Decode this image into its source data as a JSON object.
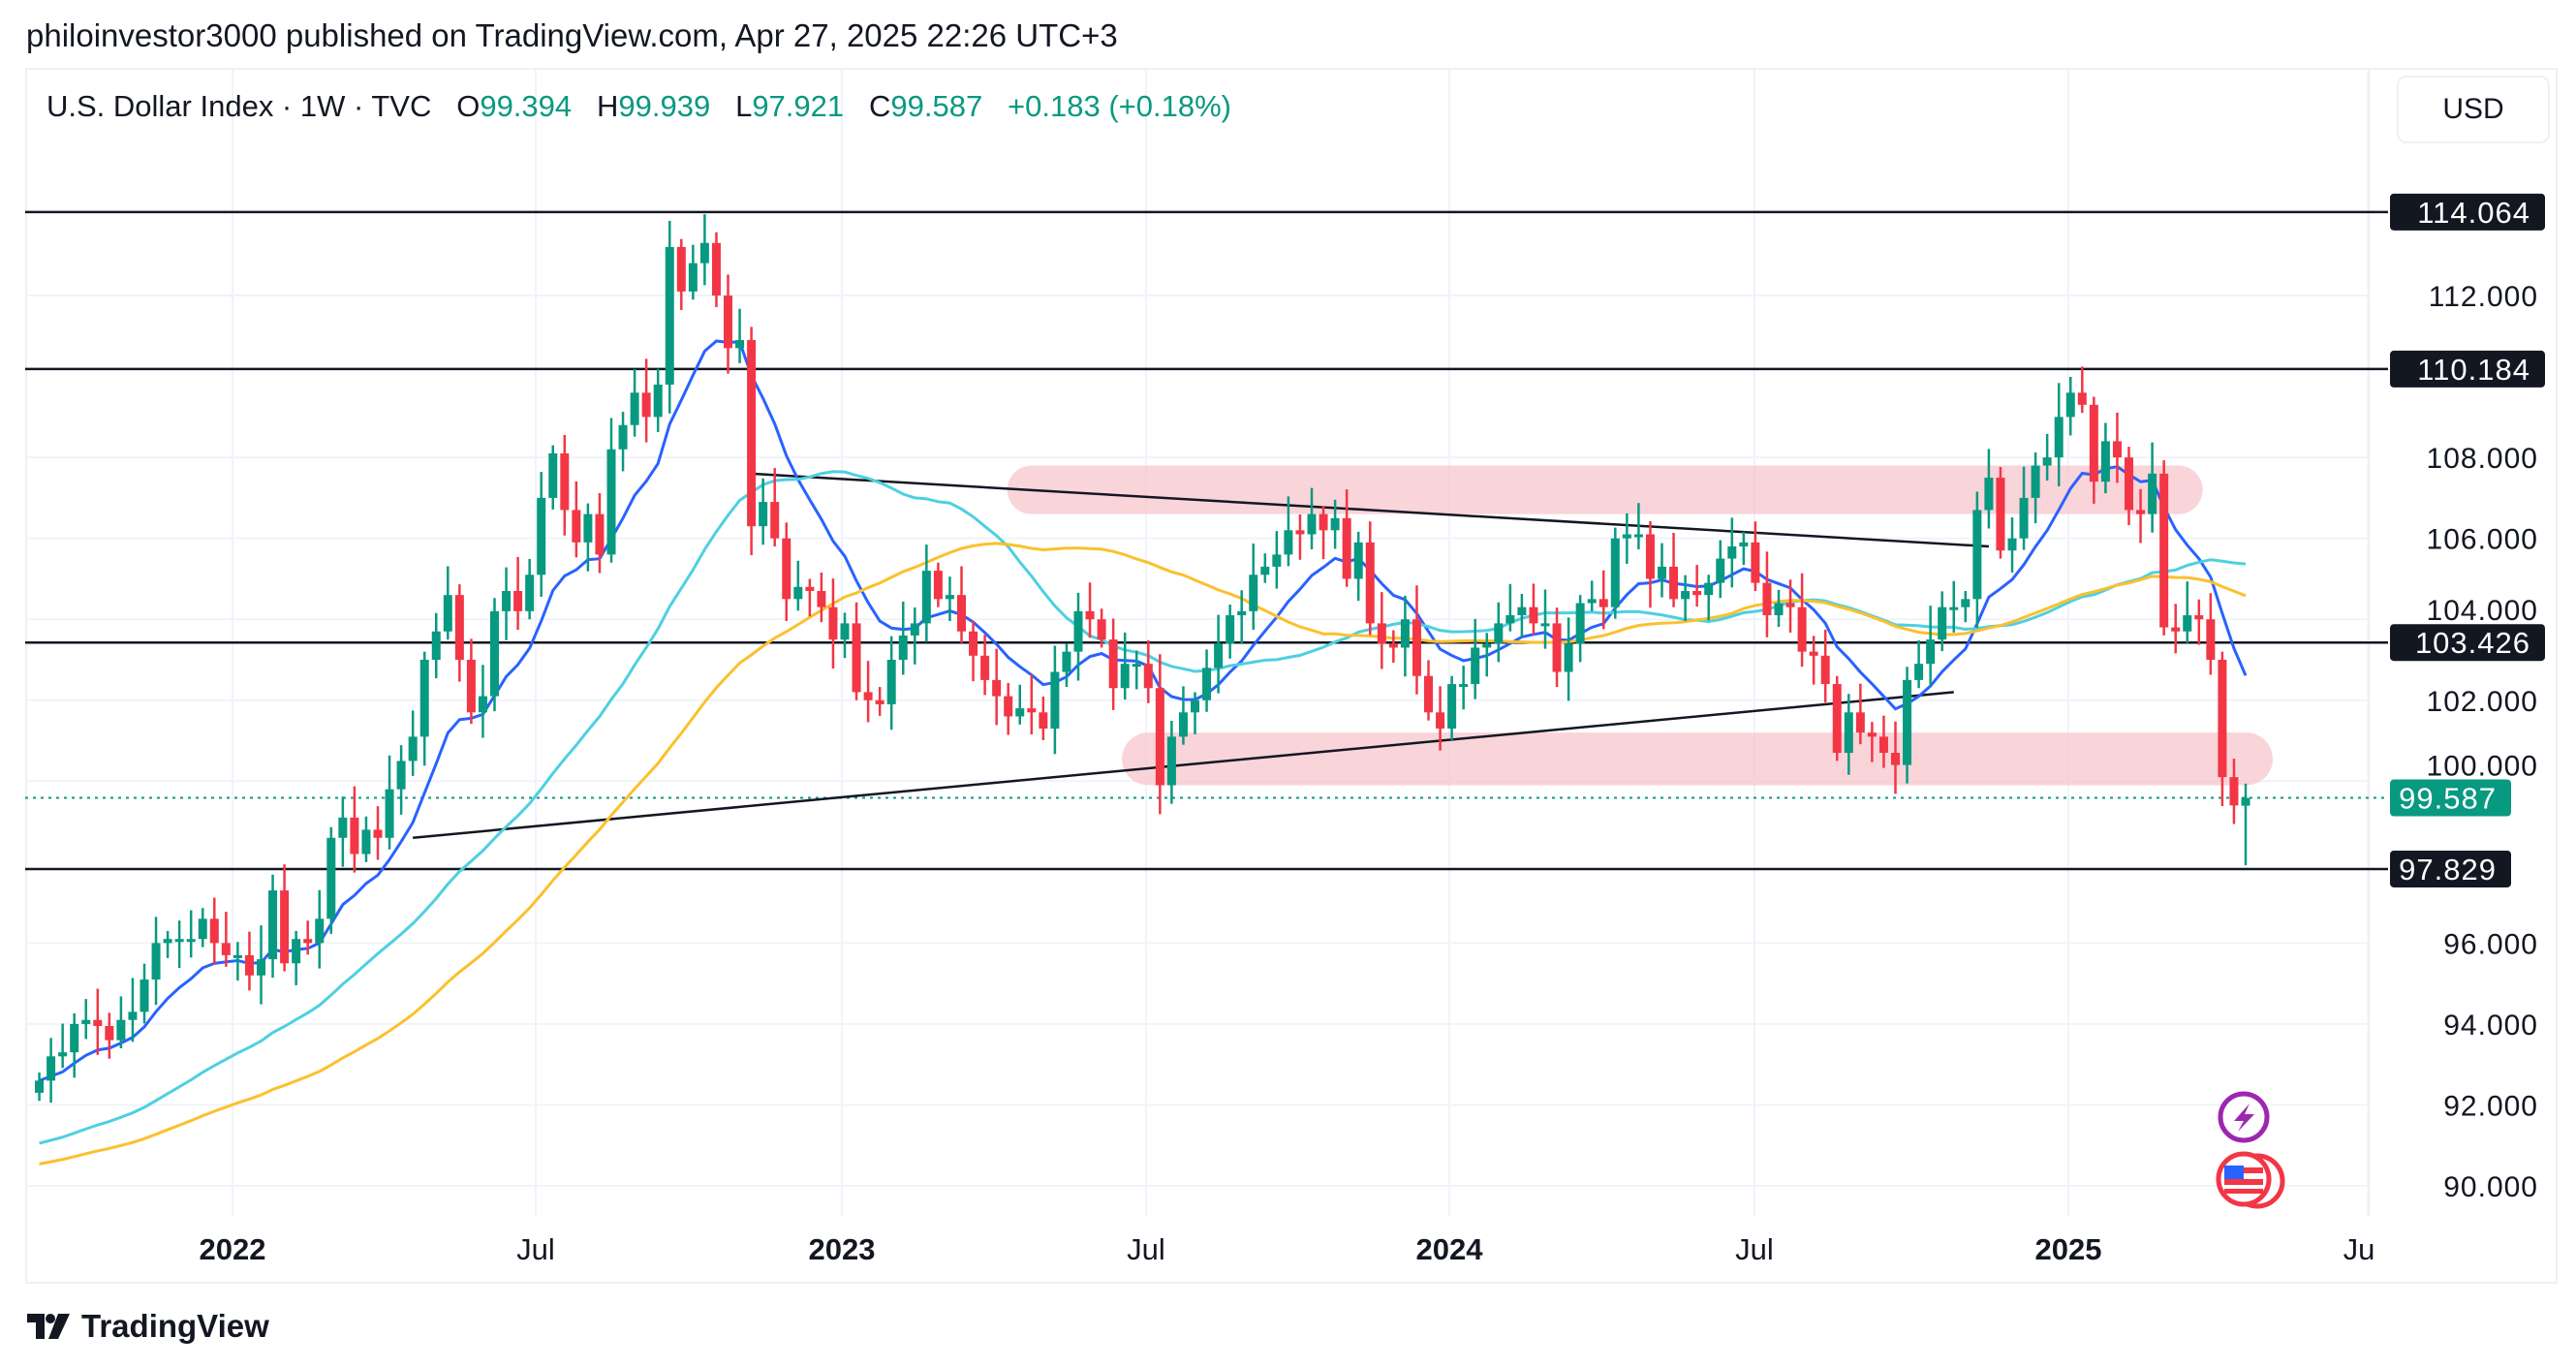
{
  "header": {
    "published": "philoinvestor3000 published on TradingView.com, Apr 27, 2025 22:26 UTC+3"
  },
  "legend": {
    "symbol": "U.S. Dollar Index · 1W · TVC",
    "o_label": "O",
    "o": "99.394",
    "h_label": "H",
    "h": "99.939",
    "l_label": "L",
    "l": "97.921",
    "c_label": "C",
    "c": "99.587",
    "change": "+0.183 (+0.18%)"
  },
  "currency_button": "USD",
  "price_axis": {
    "ticks": [
      "112.000",
      "108.000",
      "106.000",
      "104.000",
      "102.000",
      "100.000",
      "96.000",
      "94.000",
      "92.000",
      "90.000"
    ],
    "tick_values": [
      112,
      108,
      106,
      104,
      102,
      100,
      96,
      94,
      92,
      90
    ],
    "levels": [
      {
        "label": "114.064",
        "value": 114.064
      },
      {
        "label": "110.184",
        "value": 110.184
      },
      {
        "label": "103.426",
        "value": 103.426
      },
      {
        "label": "97.829",
        "value": 97.829
      }
    ],
    "current": {
      "label": "99.587",
      "value": 99.587
    }
  },
  "time_axis": {
    "labels": [
      "2022",
      "Jul",
      "2023",
      "Jul",
      "2024",
      "Jul",
      "2025",
      "Ju"
    ],
    "bold": [
      true,
      false,
      true,
      false,
      true,
      false,
      true,
      false
    ]
  },
  "colors": {
    "up": "#089981",
    "down": "#f23645",
    "ema_fast": "#2962ff",
    "ma_mid": "#4dd0e1",
    "ma_slow": "#fbc02d",
    "zone": "#f7c6cc",
    "level": "#131722"
  },
  "chart_data": {
    "type": "candlestick",
    "title": "U.S. Dollar Index · 1W · TVC",
    "ylim": [
      89,
      116
    ],
    "first_week": "2021-09-06",
    "closes": [
      92.6,
      93.2,
      93.3,
      94.0,
      94.1,
      93.95,
      93.6,
      94.1,
      94.3,
      95.1,
      96.0,
      96.1,
      96.1,
      96.1,
      96.6,
      96.0,
      95.7,
      95.7,
      95.2,
      95.6,
      97.3,
      95.5,
      96.1,
      96.0,
      96.6,
      98.6,
      99.1,
      98.2,
      98.8,
      98.6,
      99.8,
      100.5,
      101.1,
      103.0,
      103.7,
      104.6,
      103.0,
      101.7,
      102.1,
      104.2,
      104.7,
      104.2,
      105.1,
      107.0,
      108.1,
      106.7,
      105.9,
      106.6,
      105.6,
      108.2,
      108.8,
      109.6,
      109.0,
      109.8,
      113.2,
      112.1,
      112.8,
      113.3,
      112.0,
      110.7,
      110.9,
      106.3,
      106.9,
      106.0,
      104.5,
      104.8,
      104.7,
      104.3,
      103.5,
      103.9,
      102.2,
      102.0,
      101.9,
      103.0,
      103.6,
      103.9,
      105.2,
      104.5,
      104.6,
      103.7,
      103.1,
      102.5,
      102.1,
      101.6,
      101.8,
      101.7,
      101.3,
      102.7,
      103.2,
      104.2,
      104.0,
      103.5,
      102.3,
      102.9,
      102.9,
      102.3,
      99.9,
      101.1,
      101.7,
      102.0,
      102.8,
      103.4,
      104.1,
      104.2,
      105.1,
      105.3,
      105.6,
      106.2,
      106.1,
      106.6,
      106.2,
      106.5,
      105.0,
      105.9,
      103.9,
      103.4,
      103.3,
      104.0,
      102.6,
      101.7,
      101.3,
      102.4,
      102.4,
      103.3,
      103.4,
      103.9,
      104.1,
      104.3,
      103.9,
      103.9,
      102.7,
      103.4,
      104.4,
      104.5,
      104.3,
      106.0,
      106.1,
      106.1,
      105.0,
      105.3,
      104.5,
      104.7,
      104.6,
      104.9,
      105.5,
      105.8,
      105.9,
      104.9,
      104.1,
      104.4,
      104.3,
      103.2,
      103.1,
      102.4,
      100.7,
      101.7,
      101.2,
      101.1,
      100.7,
      100.4,
      102.5,
      102.9,
      103.5,
      104.3,
      104.3,
      104.5,
      106.7,
      107.5,
      105.7,
      106.0,
      107.0,
      107.8,
      108.0,
      109.0,
      109.6,
      109.3,
      107.4,
      108.4,
      108.0,
      106.7,
      106.6,
      107.6,
      103.8,
      103.7,
      104.1,
      104.0,
      103.0,
      100.1,
      99.4
    ],
    "last_candle": {
      "open": 99.394,
      "high": 99.939,
      "low": 97.921,
      "close": 99.587
    },
    "moving_averages": [
      {
        "name": "EMA fast",
        "period": 10
      },
      {
        "name": "MA mid",
        "period": 30
      },
      {
        "name": "MA slow",
        "period": 50
      }
    ],
    "trendlines": [
      {
        "from": [
          "2022-11-07",
          107.6
        ],
        "to": [
          "2024-11-18",
          105.8
        ]
      },
      {
        "from": [
          "2022-04-18",
          98.6
        ],
        "to": [
          "2024-10-28",
          102.2
        ]
      }
    ],
    "zones": [
      {
        "from": "2023-04-24",
        "to": "2025-03-03",
        "low": 106.6,
        "high": 107.8
      },
      {
        "from": "2023-07-03",
        "to": "2025-04-14",
        "low": 99.9,
        "high": 101.2
      }
    ]
  },
  "footer": {
    "brand": "TradingView"
  }
}
